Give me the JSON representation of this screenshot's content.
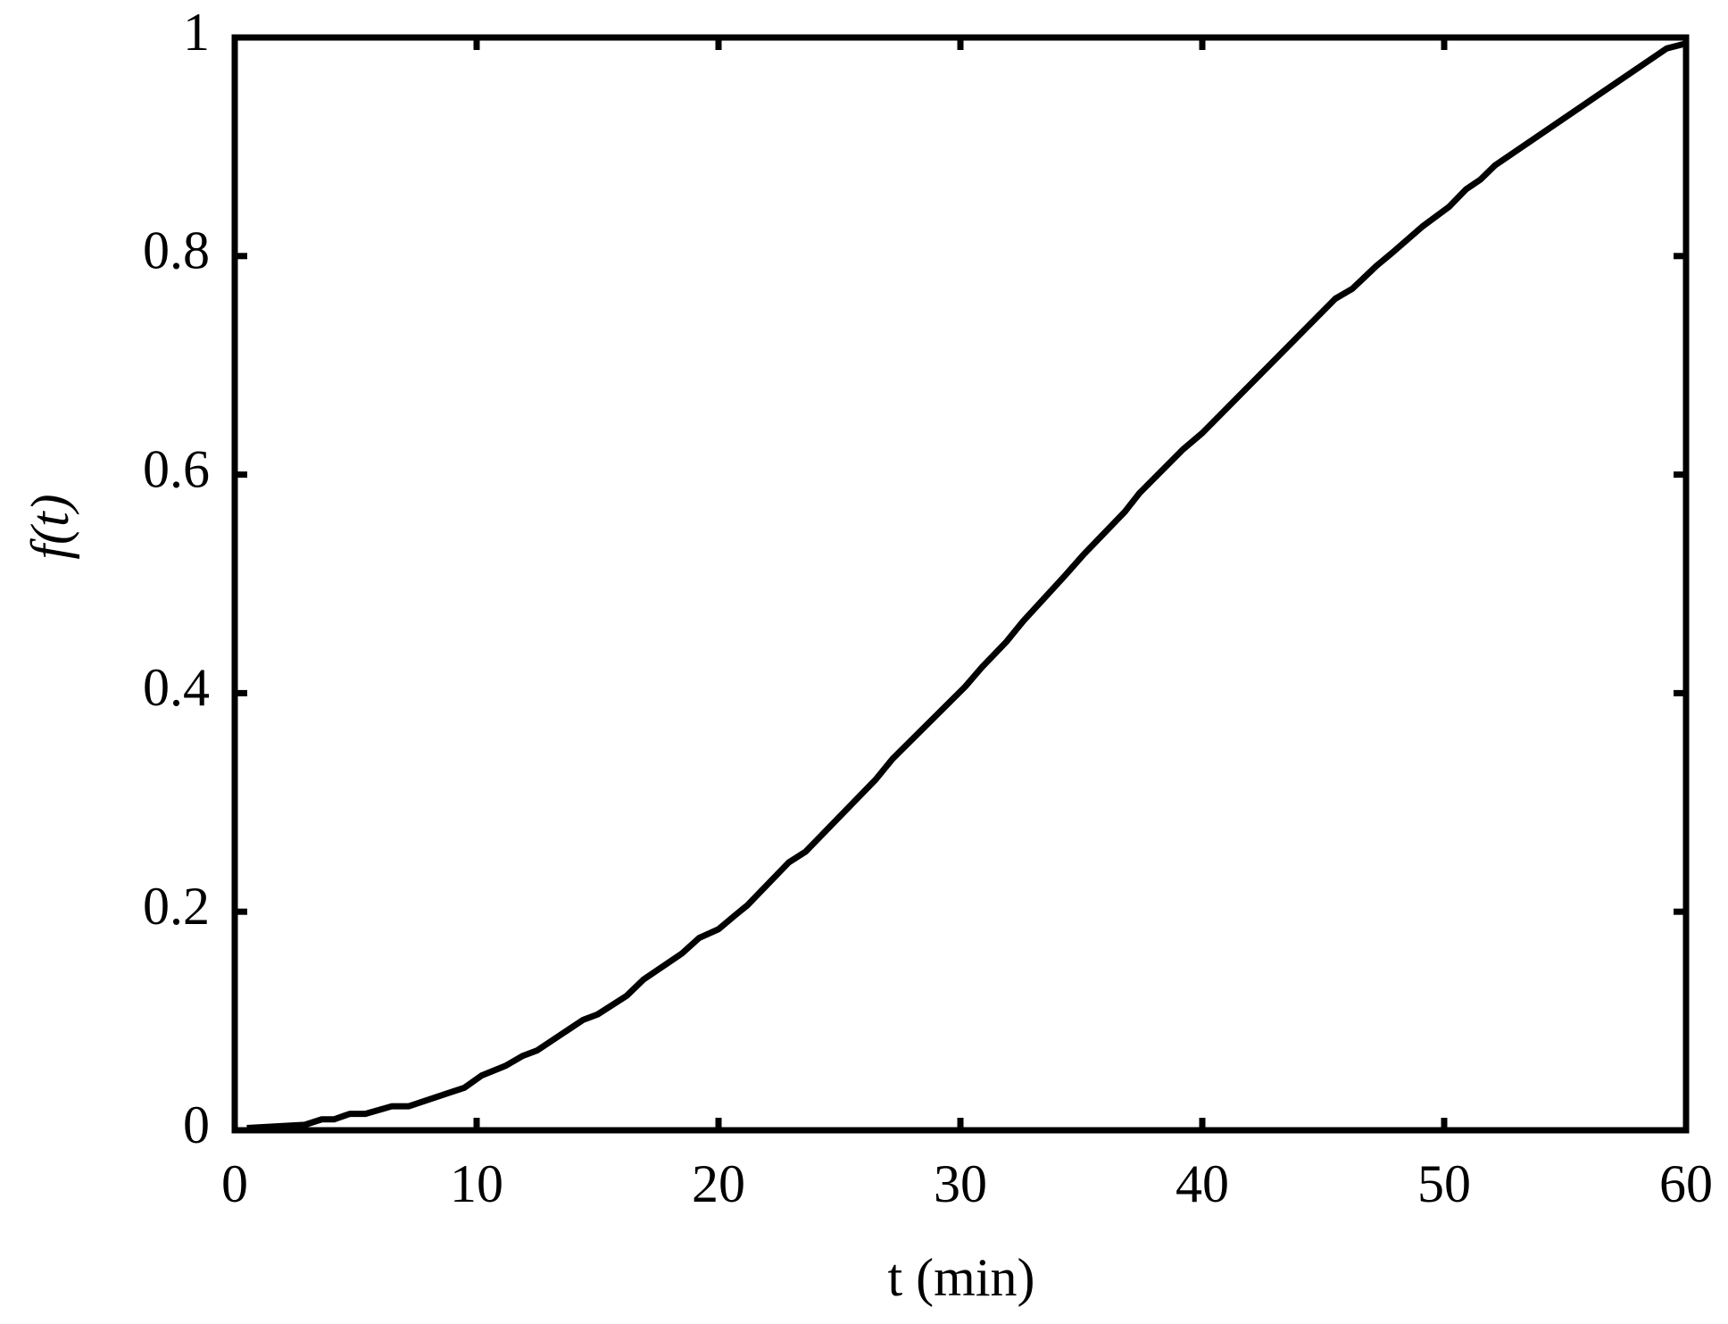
{
  "chart_data": {
    "type": "line",
    "xlabel": "t (min)",
    "ylabel": "f(t)",
    "x": [
      0.5,
      2.9,
      3.6,
      4.1,
      4.75,
      5.4,
      6.5,
      7.2,
      9.5,
      10.2,
      11.2,
      11.9,
      12.5,
      14.4,
      15.0,
      16.2,
      16.9,
      18.5,
      19.2,
      20.0,
      20.7,
      21.2,
      22.9,
      23.6,
      26.5,
      27.2,
      30.2,
      30.9,
      31.9,
      32.6,
      34.3,
      35.1,
      36.8,
      37.4,
      39.2,
      40.0,
      45.5,
      46.2,
      47.2,
      47.8,
      49.1,
      50.2,
      50.9,
      51.5,
      52.1,
      59.2,
      59.9
    ],
    "series": [
      {
        "color": "#000000",
        "values": [
          0.002,
          0.005,
          0.01,
          0.01,
          0.015,
          0.015,
          0.022,
          0.022,
          0.039,
          0.05,
          0.059,
          0.068,
          0.073,
          0.101,
          0.106,
          0.123,
          0.138,
          0.162,
          0.176,
          0.184,
          0.197,
          0.206,
          0.245,
          0.255,
          0.321,
          0.34,
          0.406,
          0.424,
          0.447,
          0.466,
          0.507,
          0.527,
          0.566,
          0.583,
          0.623,
          0.638,
          0.761,
          0.77,
          0.791,
          0.802,
          0.827,
          0.845,
          0.861,
          0.87,
          0.883,
          0.99,
          0.994
        ]
      }
    ],
    "xlim": [
      0,
      60
    ],
    "ylim": [
      0,
      1
    ],
    "xticks": [
      0,
      10,
      20,
      30,
      40,
      50,
      60
    ],
    "yticks": [
      0,
      0.2,
      0.4,
      0.6,
      0.8,
      1
    ]
  }
}
